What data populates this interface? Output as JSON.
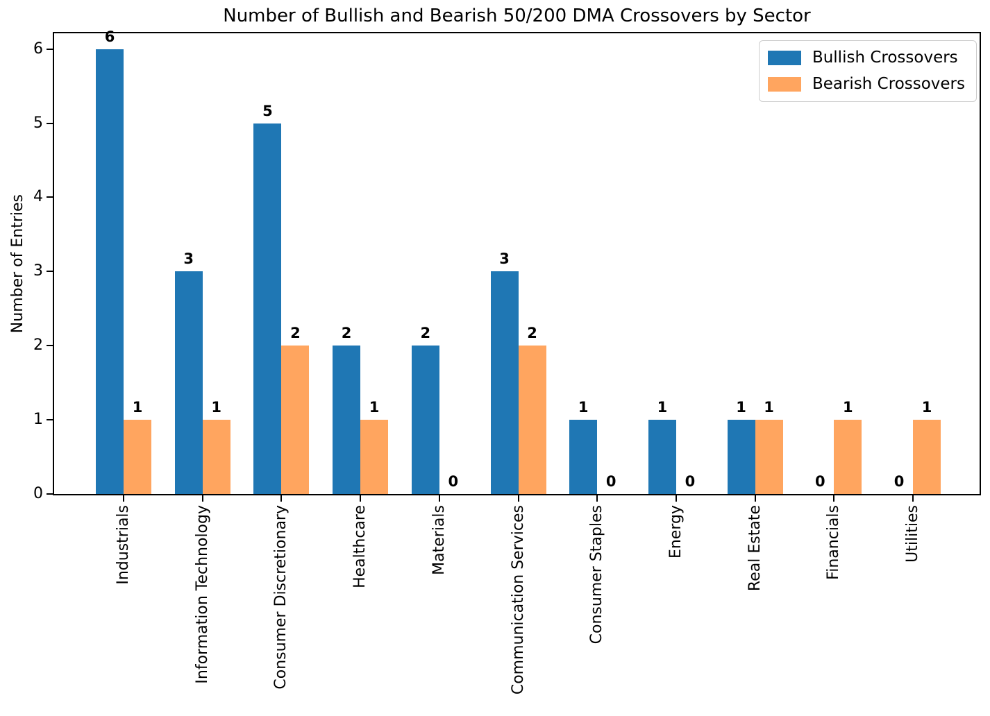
{
  "chart_data": {
    "type": "bar",
    "title": "Number of Bullish and Bearish 50/200 DMA Crossovers by Sector",
    "xlabel": "",
    "ylabel": "Number of Entries",
    "categories": [
      "Industrials",
      "Information Technology",
      "Consumer Discretionary",
      "Healthcare",
      "Materials",
      "Communication Services",
      "Consumer Staples",
      "Energy",
      "Real Estate",
      "Financials",
      "Utilities"
    ],
    "series": [
      {
        "name": "Bullish Crossovers",
        "color": "#1f77b4",
        "values": [
          6,
          3,
          5,
          2,
          2,
          3,
          1,
          1,
          1,
          0,
          0
        ]
      },
      {
        "name": "Bearish Crossovers",
        "color": "#ffa55f",
        "values": [
          1,
          1,
          2,
          1,
          0,
          2,
          0,
          0,
          1,
          1,
          1
        ]
      }
    ],
    "yticks": [
      0,
      1,
      2,
      3,
      4,
      5,
      6
    ],
    "ylim": [
      0,
      6.25
    ],
    "grid": false,
    "legend_position": "upper right",
    "bar_value_labels": true,
    "text_color": "#000000",
    "background_color": "#ffffff"
  }
}
